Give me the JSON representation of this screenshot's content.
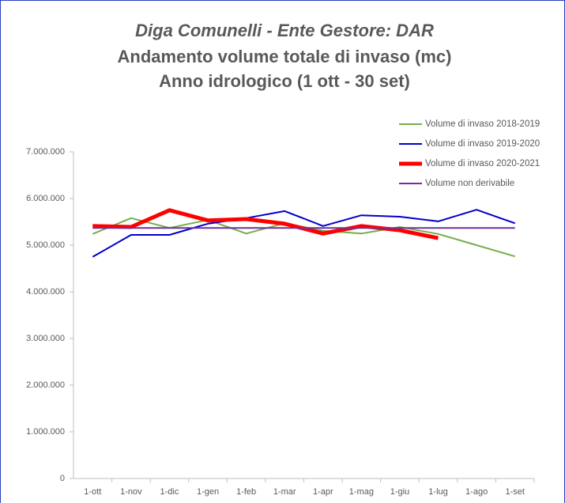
{
  "chart_data": {
    "type": "line",
    "title": "Diga Comunelli - Ente Gestore: DAR",
    "subtitle": [
      "Andamento volume totale di invaso (mc)",
      "Anno idrologico (1 ott - 30 set)"
    ],
    "categories": [
      "1-ott",
      "1-nov",
      "1-dic",
      "1-gen",
      "1-feb",
      "1-mar",
      "1-apr",
      "1-mag",
      "1-giu",
      "1-lug",
      "1-ago",
      "1-set"
    ],
    "series": [
      {
        "name": "Volume di invaso 2018-2019",
        "color": "#77ad4a",
        "width": 2,
        "values": [
          5240000,
          5580000,
          5370000,
          5540000,
          5250000,
          5470000,
          5310000,
          5250000,
          5390000,
          5240000,
          5000000,
          4760000
        ]
      },
      {
        "name": "Volume di invaso 2019-2020",
        "color": "#0000cc",
        "width": 2,
        "values": [
          4750000,
          5220000,
          5220000,
          5460000,
          5580000,
          5730000,
          5410000,
          5640000,
          5610000,
          5510000,
          5760000,
          5470000
        ]
      },
      {
        "name": "Volume di invaso 2020-2021",
        "color": "#ff0000",
        "width": 5,
        "values": [
          5410000,
          5390000,
          5750000,
          5530000,
          5560000,
          5460000,
          5250000,
          5410000,
          5320000,
          5150000,
          null,
          null
        ]
      },
      {
        "name": "Volume non derivabile",
        "color": "#7030a0",
        "width": 2,
        "values": [
          5370000,
          5370000,
          5370000,
          5370000,
          5370000,
          5370000,
          5370000,
          5370000,
          5370000,
          5370000,
          5370000,
          5370000
        ]
      }
    ],
    "ylim": [
      0,
      7000000
    ],
    "yticks": [
      0,
      {
        "value": 1000000,
        "label": "1.000.000"
      },
      {
        "value": 2000000,
        "label": "2.000.000"
      },
      {
        "value": 3000000,
        "label": "3.000.000"
      },
      {
        "value": 4000000,
        "label": "4.000.000"
      },
      {
        "value": 5000000,
        "label": "5.000.000"
      },
      {
        "value": 6000000,
        "label": "6.000.000"
      },
      {
        "value": 7000000,
        "label": "7.000.000"
      }
    ],
    "grid": false,
    "legend": "top-right"
  }
}
